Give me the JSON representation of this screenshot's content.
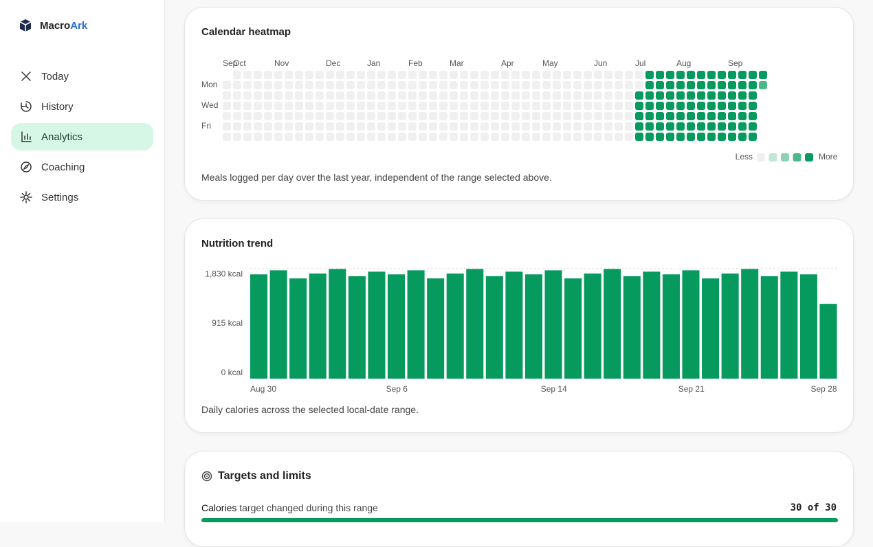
{
  "sidebar": {
    "brand": {
      "part1": "Macro",
      "part2": "Ark"
    },
    "nav": [
      {
        "label": "Today"
      },
      {
        "label": "History"
      },
      {
        "label": "Analytics",
        "active": true
      },
      {
        "label": "Coaching"
      },
      {
        "label": "Settings"
      }
    ]
  },
  "heatmap": {
    "title": "Calendar heatmap",
    "months": [
      {
        "label": "Sep",
        "week": 0
      },
      {
        "label": "Oct",
        "week": 1
      },
      {
        "label": "Nov",
        "week": 5
      },
      {
        "label": "Dec",
        "week": 10
      },
      {
        "label": "Jan",
        "week": 14
      },
      {
        "label": "Feb",
        "week": 18
      },
      {
        "label": "Mar",
        "week": 22
      },
      {
        "label": "Apr",
        "week": 27
      },
      {
        "label": "May",
        "week": 31
      },
      {
        "label": "Jun",
        "week": 36
      },
      {
        "label": "Jul",
        "week": 40
      },
      {
        "label": "Aug",
        "week": 44
      },
      {
        "label": "Sep",
        "week": 49
      }
    ],
    "days": [
      {
        "label": "Mon",
        "row": 1
      },
      {
        "label": "Wed",
        "row": 3
      },
      {
        "label": "Fri",
        "row": 5
      }
    ],
    "level_colors": [
      "#f0f0f0",
      "#c3e7d5",
      "#8fd1b3",
      "#4cb88a",
      "#079a5f"
    ],
    "rows": [
      [
        null,
        0,
        0,
        0,
        0,
        0,
        0,
        0,
        0,
        0,
        0,
        0,
        0,
        0,
        0,
        0,
        0,
        0,
        0,
        0,
        0,
        0,
        0,
        0,
        0,
        0,
        0,
        0,
        0,
        0,
        0,
        0,
        0,
        0,
        0,
        0,
        0,
        0,
        0,
        0,
        0,
        4,
        4,
        4,
        4,
        4,
        4,
        4,
        4,
        4,
        4,
        4,
        4
      ],
      [
        0,
        0,
        0,
        0,
        0,
        0,
        0,
        0,
        0,
        0,
        0,
        0,
        0,
        0,
        0,
        0,
        0,
        0,
        0,
        0,
        0,
        0,
        0,
        0,
        0,
        0,
        0,
        0,
        0,
        0,
        0,
        0,
        0,
        0,
        0,
        0,
        0,
        0,
        0,
        0,
        0,
        4,
        4,
        4,
        4,
        4,
        4,
        4,
        4,
        4,
        4,
        4,
        3
      ],
      [
        0,
        0,
        0,
        0,
        0,
        0,
        0,
        0,
        0,
        0,
        0,
        0,
        0,
        0,
        0,
        0,
        0,
        0,
        0,
        0,
        0,
        0,
        0,
        0,
        0,
        0,
        0,
        0,
        0,
        0,
        0,
        0,
        0,
        0,
        0,
        0,
        0,
        0,
        0,
        0,
        4,
        4,
        4,
        4,
        4,
        4,
        4,
        4,
        4,
        4,
        4,
        4,
        null
      ],
      [
        0,
        0,
        0,
        0,
        0,
        0,
        0,
        0,
        0,
        0,
        0,
        0,
        0,
        0,
        0,
        0,
        0,
        0,
        0,
        0,
        0,
        0,
        0,
        0,
        0,
        0,
        0,
        0,
        0,
        0,
        0,
        0,
        0,
        0,
        0,
        0,
        0,
        0,
        0,
        0,
        4,
        4,
        4,
        4,
        4,
        4,
        4,
        4,
        4,
        4,
        4,
        4,
        null
      ],
      [
        0,
        0,
        0,
        0,
        0,
        0,
        0,
        0,
        0,
        0,
        0,
        0,
        0,
        0,
        0,
        0,
        0,
        0,
        0,
        0,
        0,
        0,
        0,
        0,
        0,
        0,
        0,
        0,
        0,
        0,
        0,
        0,
        0,
        0,
        0,
        0,
        0,
        0,
        0,
        0,
        4,
        4,
        4,
        4,
        4,
        4,
        4,
        4,
        4,
        4,
        4,
        4,
        null
      ],
      [
        0,
        0,
        0,
        0,
        0,
        0,
        0,
        0,
        0,
        0,
        0,
        0,
        0,
        0,
        0,
        0,
        0,
        0,
        0,
        0,
        0,
        0,
        0,
        0,
        0,
        0,
        0,
        0,
        0,
        0,
        0,
        0,
        0,
        0,
        0,
        0,
        0,
        0,
        0,
        0,
        4,
        4,
        4,
        4,
        4,
        4,
        4,
        4,
        4,
        4,
        4,
        4,
        null
      ],
      [
        0,
        0,
        0,
        0,
        0,
        0,
        0,
        0,
        0,
        0,
        0,
        0,
        0,
        0,
        0,
        0,
        0,
        0,
        0,
        0,
        0,
        0,
        0,
        0,
        0,
        0,
        0,
        0,
        0,
        0,
        0,
        0,
        0,
        0,
        0,
        0,
        0,
        0,
        0,
        0,
        4,
        4,
        4,
        4,
        4,
        4,
        4,
        4,
        4,
        4,
        4,
        4,
        null
      ]
    ],
    "legend": {
      "less": "Less",
      "more": "More",
      "levels": [
        0,
        1,
        2,
        3,
        4
      ]
    },
    "caption": "Meals logged per day over the last year, independent of the range selected above."
  },
  "chart_data": {
    "type": "bar",
    "title": "Nutrition trend",
    "color": "#079a5f",
    "categories": [
      "Aug 30",
      null,
      null,
      null,
      null,
      null,
      null,
      "Sep 6",
      null,
      null,
      null,
      null,
      null,
      null,
      null,
      "Sep 14",
      null,
      null,
      null,
      null,
      null,
      null,
      "Sep 21",
      null,
      null,
      null,
      null,
      null,
      null,
      "Sep 28"
    ],
    "values": [
      1930,
      2005,
      1855,
      1945,
      2030,
      1895,
      1980,
      1930,
      2005,
      1855,
      1945,
      2030,
      1895,
      1980,
      1930,
      2005,
      1855,
      1945,
      2030,
      1895,
      1980,
      1930,
      2005,
      1855,
      1945,
      2030,
      1895,
      1980,
      1930,
      1385
    ],
    "ylim": [
      0,
      2035
    ],
    "yticks": [
      {
        "value": 0,
        "label": "0 kcal"
      },
      {
        "value": 915,
        "label": "915 kcal"
      },
      {
        "value": 1830,
        "label": "1,830 kcal"
      }
    ],
    "caption": "Daily calories across the selected local-date range."
  },
  "targets": {
    "title": "Targets and limits",
    "rows": [
      {
        "name": "Calories",
        "note": " target changed during this range",
        "count_label": "30 of 30",
        "done": 30,
        "total": 30
      }
    ]
  }
}
